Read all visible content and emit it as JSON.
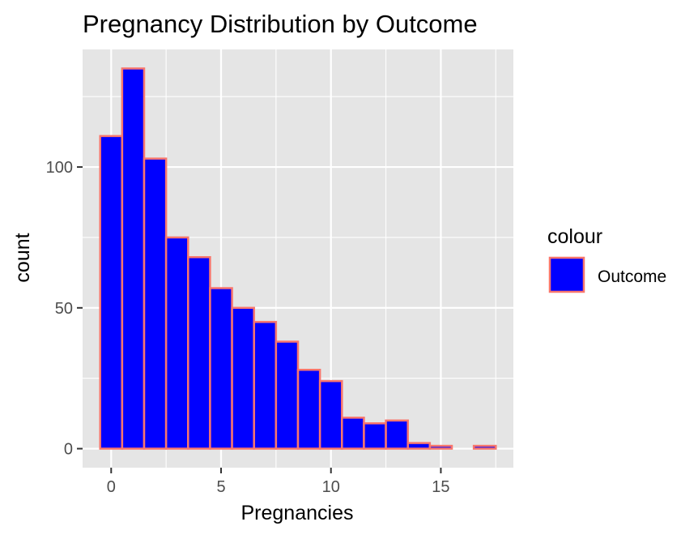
{
  "chart_data": {
    "type": "bar",
    "subtype": "histogram",
    "title": "Pregnancy Distribution by Outcome",
    "xlabel": "Pregnancies",
    "ylabel": "count",
    "bins": [
      {
        "center": 0,
        "count": 111
      },
      {
        "center": 1,
        "count": 135
      },
      {
        "center": 2,
        "count": 103
      },
      {
        "center": 3,
        "count": 75
      },
      {
        "center": 4,
        "count": 68
      },
      {
        "center": 5,
        "count": 57
      },
      {
        "center": 6,
        "count": 50
      },
      {
        "center": 7,
        "count": 45
      },
      {
        "center": 8,
        "count": 38
      },
      {
        "center": 9,
        "count": 28
      },
      {
        "center": 10,
        "count": 24
      },
      {
        "center": 11,
        "count": 11
      },
      {
        "center": 12,
        "count": 9
      },
      {
        "center": 13,
        "count": 10
      },
      {
        "center": 14,
        "count": 2
      },
      {
        "center": 15,
        "count": 1
      },
      {
        "center": 16,
        "count": 0
      },
      {
        "center": 17,
        "count": 1
      }
    ],
    "bin_width": 1,
    "xlim": [
      -1.3,
      18.3
    ],
    "ylim": [
      -6.75,
      141.75
    ],
    "x_ticks": [
      0,
      5,
      10,
      15
    ],
    "x_tick_labels": [
      "0",
      "5",
      "10",
      "15"
    ],
    "y_ticks": [
      0,
      50,
      100
    ],
    "y_tick_labels": [
      "0",
      "50",
      "100"
    ],
    "grid": true,
    "fill_color": "#0000ff",
    "outline_color": "#f8766d",
    "panel_background": "#e5e5e5",
    "gridline_color": "#ffffff",
    "legend": {
      "title": "colour",
      "position": "right",
      "entries": [
        "Outcome"
      ]
    }
  }
}
